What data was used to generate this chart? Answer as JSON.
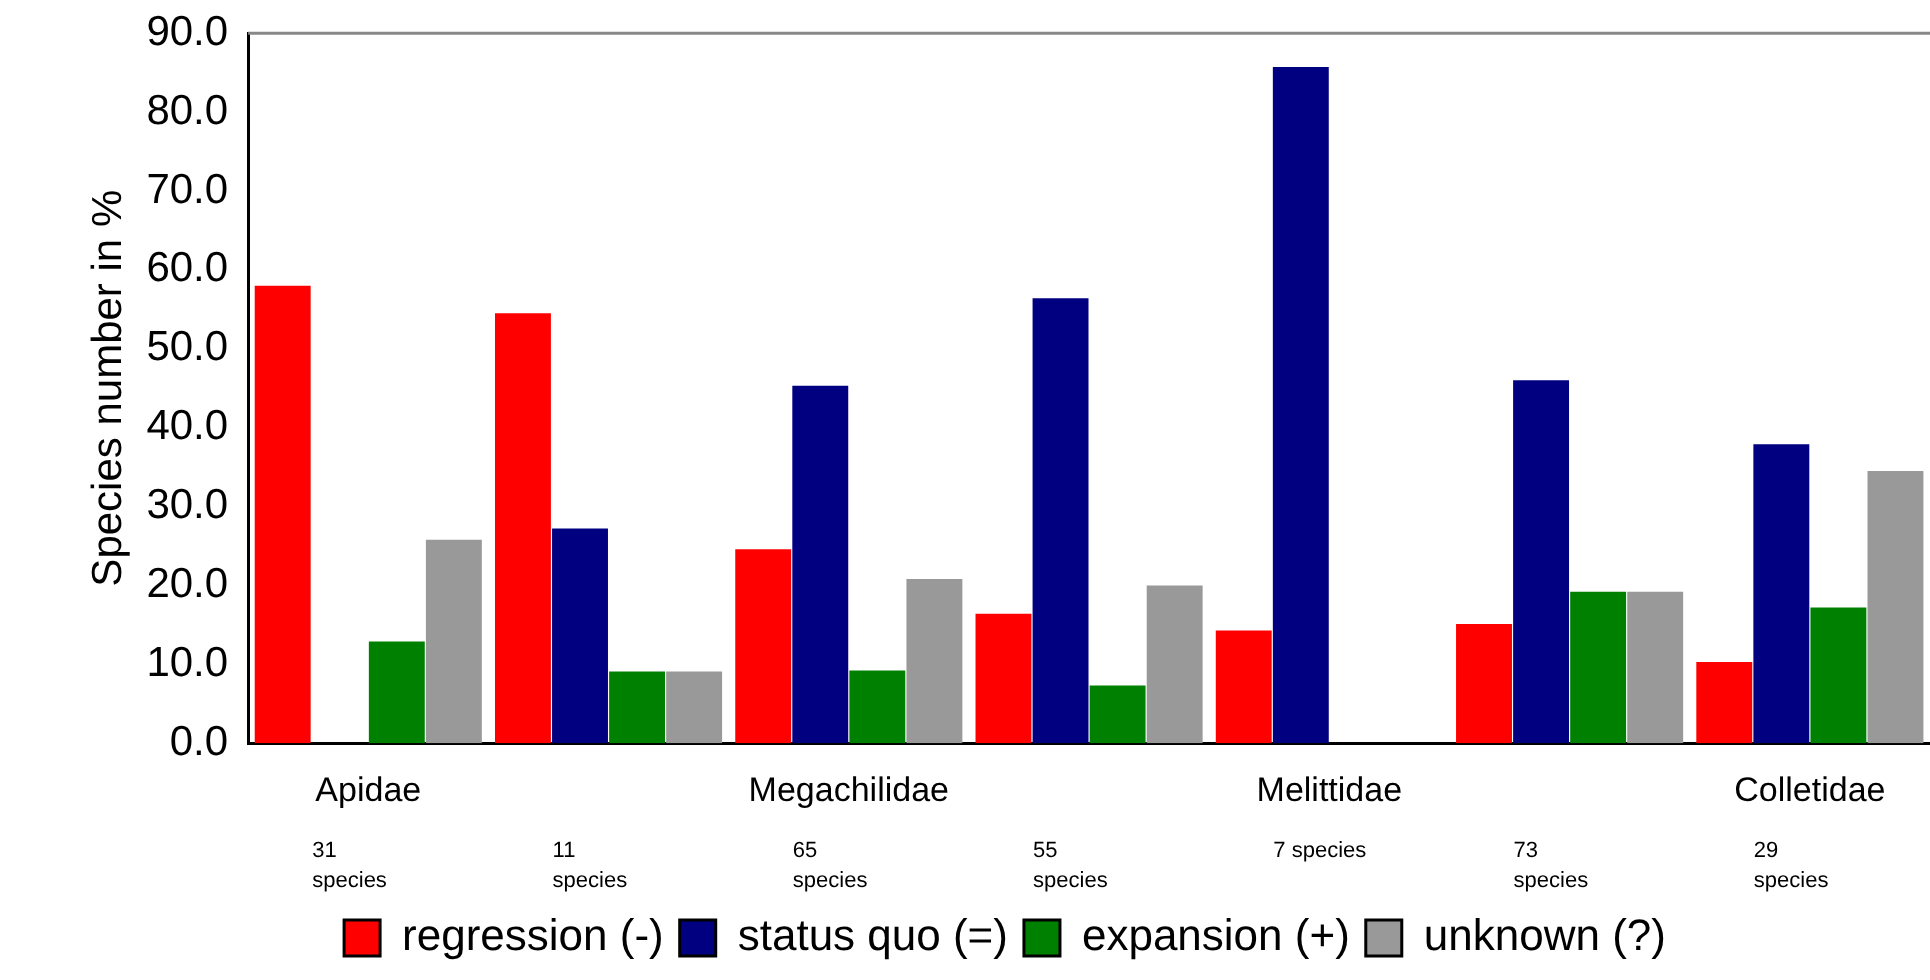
{
  "chart_data": {
    "type": "bar",
    "ylabel": "Species number in %",
    "categories": [
      "Apidae",
      null,
      "Megachilidae",
      null,
      "Melittidae",
      null,
      "Colletidae"
    ],
    "series": [
      {
        "name": "regression (-)",
        "color": "#ff0000",
        "values": [
          58.0,
          54.5,
          24.6,
          16.4,
          14.3,
          15.1,
          10.3
        ]
      },
      {
        "name": "status quo (=)",
        "color": "#000080",
        "values": [
          0,
          27.2,
          45.3,
          56.4,
          85.7,
          46.0,
          37.9
        ]
      },
      {
        "name": "expansion (+)",
        "color": "#008000",
        "values": [
          12.9,
          9.1,
          9.2,
          7.3,
          0,
          19.2,
          17.2
        ]
      },
      {
        "name": "unknown (?)",
        "color": "#999999",
        "values": [
          25.8,
          9.1,
          20.8,
          20.0,
          0,
          19.2,
          34.5
        ]
      }
    ],
    "ylim": [
      0,
      90
    ],
    "yticks": [
      {
        "value": 0,
        "label": "0.0"
      },
      {
        "value": 10,
        "label": "10.0"
      },
      {
        "value": 20,
        "label": "20.0"
      },
      {
        "value": 30,
        "label": "30.0"
      },
      {
        "value": 40,
        "label": "40.0"
      },
      {
        "value": 50,
        "label": "50.0"
      },
      {
        "value": 60,
        "label": "60.0"
      },
      {
        "value": 70,
        "label": "70.0"
      },
      {
        "value": 80,
        "label": "80.0"
      },
      {
        "value": 90,
        "label": "90.0"
      }
    ],
    "annotations": [
      "31 species",
      "11 species",
      "65 species",
      "55 species",
      "7 species",
      "73 species",
      "29 species"
    ],
    "grid": false,
    "legend": "bottom"
  }
}
